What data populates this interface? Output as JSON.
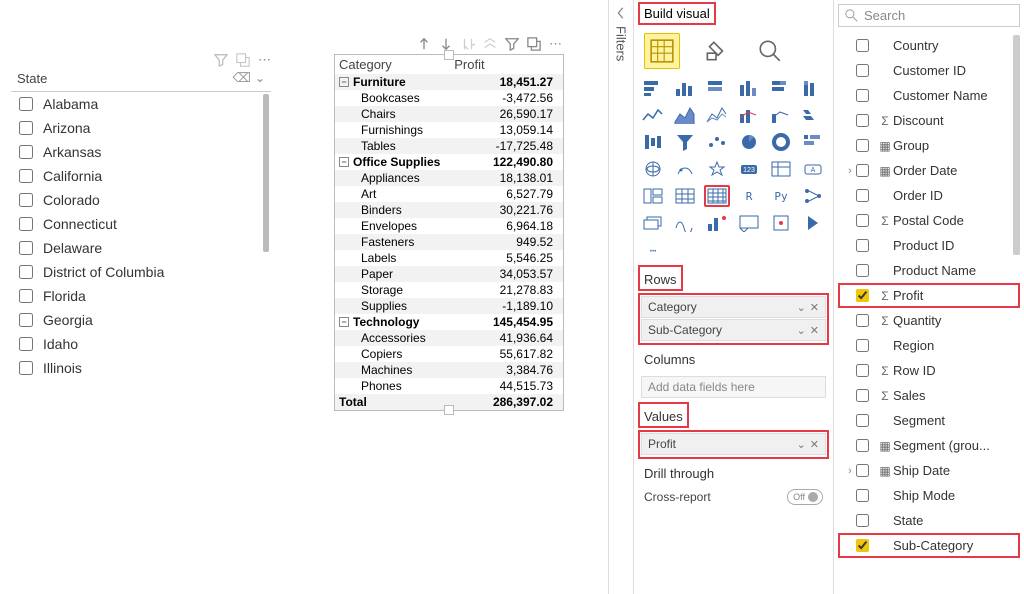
{
  "slicer": {
    "title": "State",
    "items": [
      "Alabama",
      "Arizona",
      "Arkansas",
      "California",
      "Colorado",
      "Connecticut",
      "Delaware",
      "District of Columbia",
      "Florida",
      "Georgia",
      "Idaho",
      "Illinois"
    ]
  },
  "matrix": {
    "col1": "Category",
    "col2": "Profit",
    "rows": [
      {
        "t": "cat",
        "label": "Furniture",
        "value": "18,451.27"
      },
      {
        "t": "sub",
        "label": "Bookcases",
        "value": "-3,472.56"
      },
      {
        "t": "sub",
        "label": "Chairs",
        "value": "26,590.17"
      },
      {
        "t": "sub",
        "label": "Furnishings",
        "value": "13,059.14"
      },
      {
        "t": "sub",
        "label": "Tables",
        "value": "-17,725.48"
      },
      {
        "t": "cat",
        "label": "Office Supplies",
        "value": "122,490.80"
      },
      {
        "t": "sub",
        "label": "Appliances",
        "value": "18,138.01"
      },
      {
        "t": "sub",
        "label": "Art",
        "value": "6,527.79"
      },
      {
        "t": "sub",
        "label": "Binders",
        "value": "30,221.76"
      },
      {
        "t": "sub",
        "label": "Envelopes",
        "value": "6,964.18"
      },
      {
        "t": "sub",
        "label": "Fasteners",
        "value": "949.52"
      },
      {
        "t": "sub",
        "label": "Labels",
        "value": "5,546.25"
      },
      {
        "t": "sub",
        "label": "Paper",
        "value": "34,053.57"
      },
      {
        "t": "sub",
        "label": "Storage",
        "value": "21,278.83"
      },
      {
        "t": "sub",
        "label": "Supplies",
        "value": "-1,189.10"
      },
      {
        "t": "cat",
        "label": "Technology",
        "value": "145,454.95"
      },
      {
        "t": "sub",
        "label": "Accessories",
        "value": "41,936.64"
      },
      {
        "t": "sub",
        "label": "Copiers",
        "value": "55,617.82"
      },
      {
        "t": "sub",
        "label": "Machines",
        "value": "3,384.76"
      },
      {
        "t": "sub",
        "label": "Phones",
        "value": "44,515.73"
      },
      {
        "t": "total",
        "label": "Total",
        "value": "286,397.02"
      }
    ]
  },
  "filters_label": "Filters",
  "build": {
    "header": "Build visual",
    "rows_label": "Rows",
    "rows_wells": [
      "Category",
      "Sub-Category"
    ],
    "cols_label": "Columns",
    "cols_ph": "Add data fields here",
    "values_label": "Values",
    "values_wells": [
      "Profit"
    ],
    "drill_label": "Drill through",
    "cross_label": "Cross-report",
    "cross_state": "Off"
  },
  "search_ph": "Search",
  "fields": [
    {
      "name": "Country",
      "type": "",
      "caret": ""
    },
    {
      "name": "Customer ID",
      "type": "",
      "caret": ""
    },
    {
      "name": "Customer Name",
      "type": "",
      "caret": ""
    },
    {
      "name": "Discount",
      "type": "Σ",
      "caret": ""
    },
    {
      "name": "Group",
      "type": "▦",
      "caret": ""
    },
    {
      "name": "Order Date",
      "type": "▦",
      "caret": "›"
    },
    {
      "name": "Order ID",
      "type": "",
      "caret": ""
    },
    {
      "name": "Postal Code",
      "type": "Σ",
      "caret": ""
    },
    {
      "name": "Product ID",
      "type": "",
      "caret": ""
    },
    {
      "name": "Product Name",
      "type": "",
      "caret": ""
    },
    {
      "name": "Profit",
      "type": "Σ",
      "caret": "",
      "checked": true,
      "hl": true
    },
    {
      "name": "Quantity",
      "type": "Σ",
      "caret": ""
    },
    {
      "name": "Region",
      "type": "",
      "caret": ""
    },
    {
      "name": "Row ID",
      "type": "Σ",
      "caret": ""
    },
    {
      "name": "Sales",
      "type": "Σ",
      "caret": ""
    },
    {
      "name": "Segment",
      "type": "",
      "caret": ""
    },
    {
      "name": "Segment (grou...",
      "type": "▦",
      "caret": ""
    },
    {
      "name": "Ship Date",
      "type": "▦",
      "caret": "›"
    },
    {
      "name": "Ship Mode",
      "type": "",
      "caret": ""
    },
    {
      "name": "State",
      "type": "",
      "caret": ""
    },
    {
      "name": "Sub-Category",
      "type": "",
      "caret": "",
      "checked": true,
      "hl": true
    }
  ]
}
